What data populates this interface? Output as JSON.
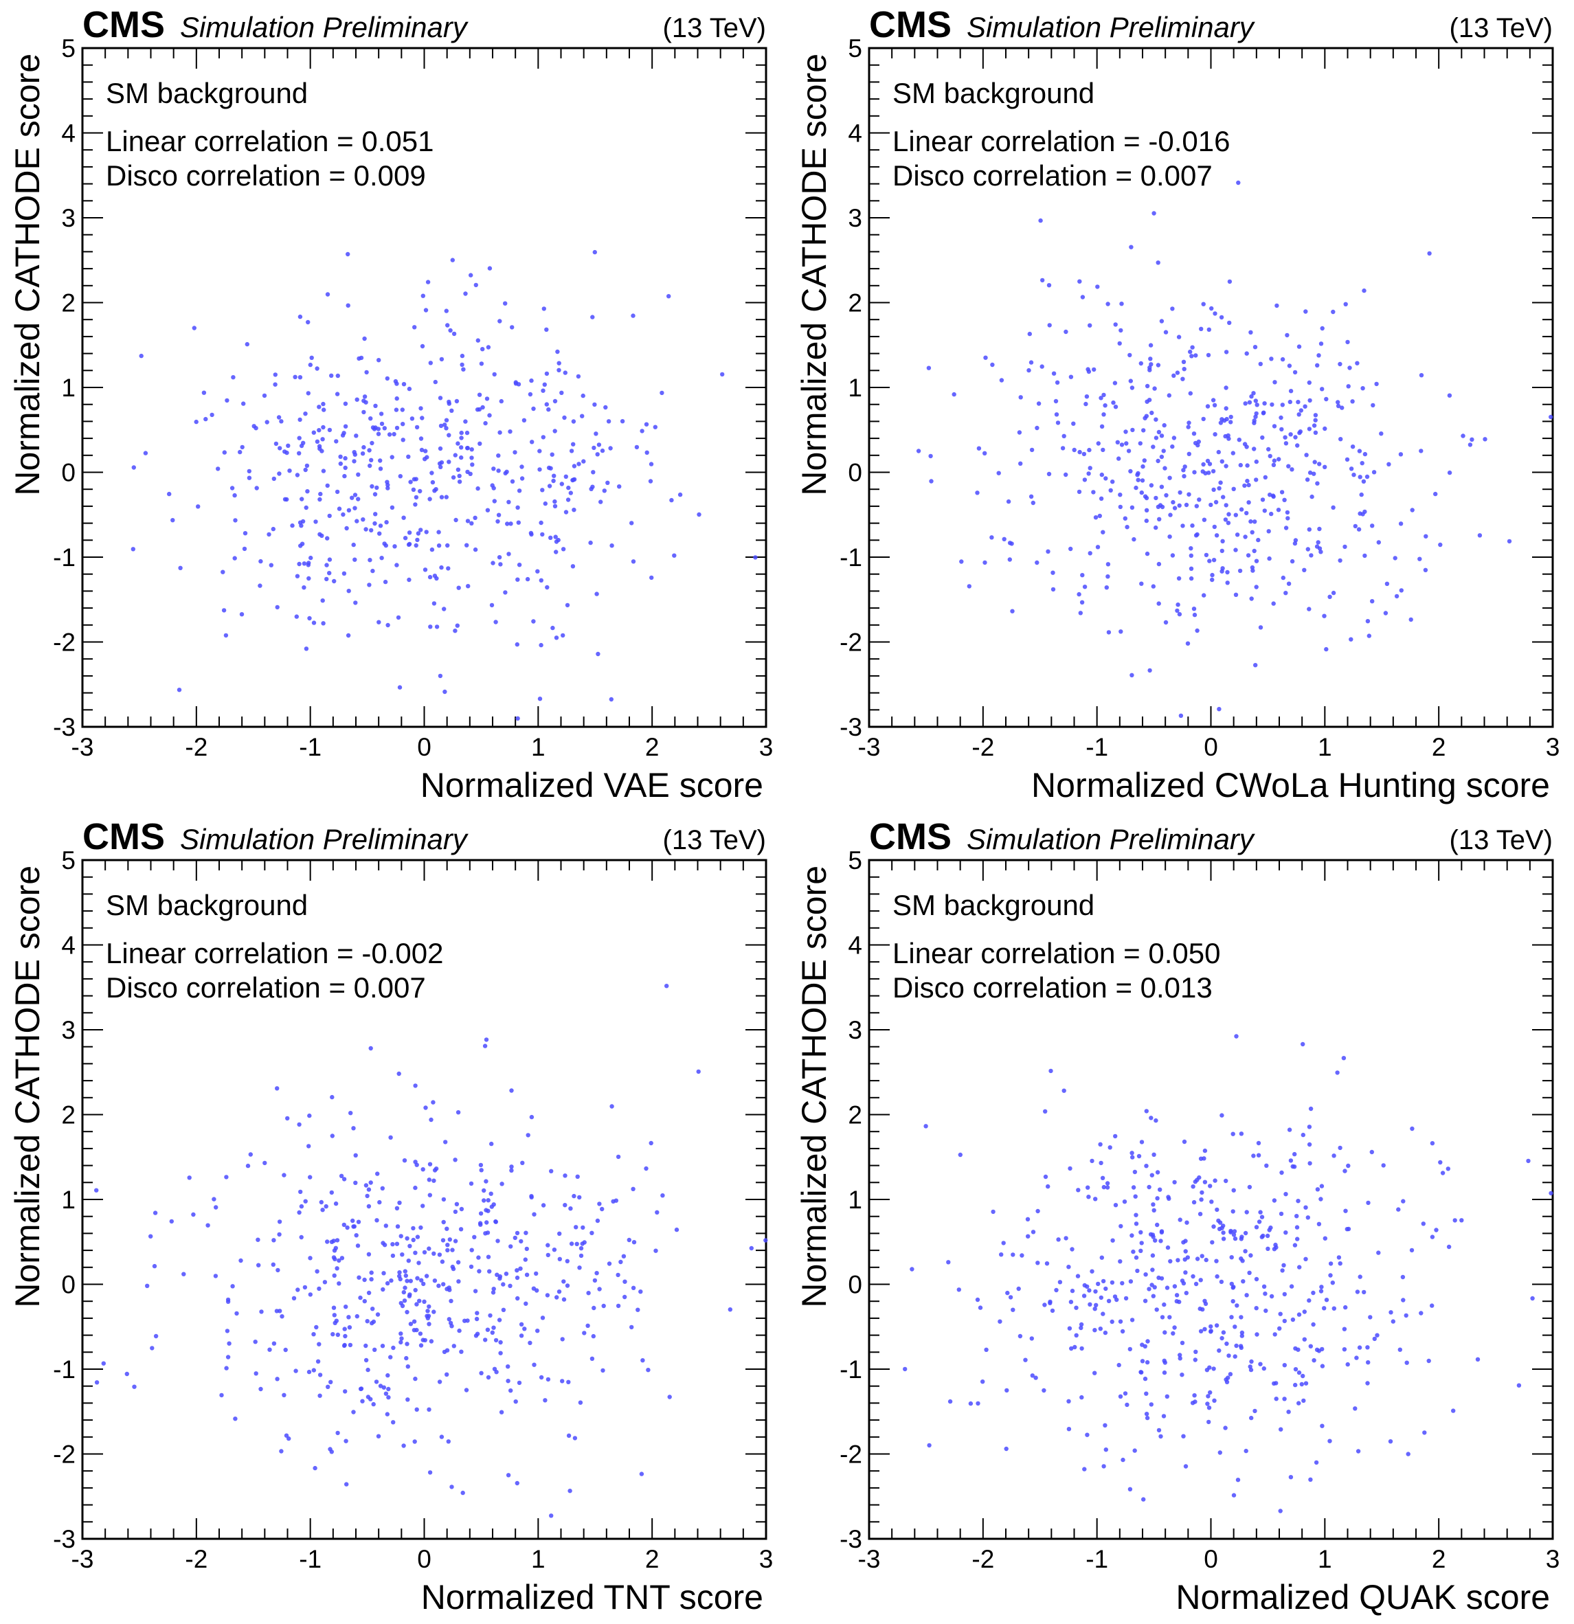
{
  "chart_data": [
    {
      "type": "scatter",
      "experiment": "CMS",
      "status": "Simulation Preliminary",
      "energy": "(13 TeV)",
      "xlabel": "Normalized VAE score",
      "ylabel": "Normalized CATHODE score",
      "xlim": [
        -3,
        3
      ],
      "ylim": [
        -3,
        5
      ],
      "xticks": [
        "-3",
        "-2",
        "-1",
        "0",
        "1",
        "2",
        "3"
      ],
      "yticks": [
        "-3",
        "-2",
        "-1",
        "0",
        "1",
        "2",
        "3",
        "4",
        "5"
      ],
      "sample_label": "SM background",
      "linear_label": "Linear correlation = 0.051",
      "disco_label": "Disco correlation = 0.009",
      "linear_correlation": 0.051,
      "disco_correlation": 0.009,
      "marker_color": "#4b4bff",
      "n_points": 520,
      "points": []
    },
    {
      "type": "scatter",
      "experiment": "CMS",
      "status": "Simulation Preliminary",
      "energy": "(13 TeV)",
      "xlabel": "Normalized CWoLa Hunting score",
      "ylabel": "Normalized CATHODE score",
      "xlim": [
        -3,
        3
      ],
      "ylim": [
        -3,
        5
      ],
      "xticks": [
        "-3",
        "-2",
        "-1",
        "0",
        "1",
        "2",
        "3"
      ],
      "yticks": [
        "-3",
        "-2",
        "-1",
        "0",
        "1",
        "2",
        "3",
        "4",
        "5"
      ],
      "sample_label": "SM background",
      "linear_label": "Linear correlation = -0.016",
      "disco_label": "Disco correlation = 0.007",
      "linear_correlation": -0.016,
      "disco_correlation": 0.007,
      "marker_color": "#4b4bff",
      "n_points": 520,
      "points": []
    },
    {
      "type": "scatter",
      "experiment": "CMS",
      "status": "Simulation Preliminary",
      "energy": "(13 TeV)",
      "xlabel": "Normalized TNT score",
      "ylabel": "Normalized CATHODE score",
      "xlim": [
        -3,
        3
      ],
      "ylim": [
        -3,
        5
      ],
      "xticks": [
        "-3",
        "-2",
        "-1",
        "0",
        "1",
        "2",
        "3"
      ],
      "yticks": [
        "-3",
        "-2",
        "-1",
        "0",
        "1",
        "2",
        "3",
        "4",
        "5"
      ],
      "sample_label": "SM background",
      "linear_label": "Linear correlation = -0.002",
      "disco_label": "Disco correlation = 0.007",
      "linear_correlation": -0.002,
      "disco_correlation": 0.007,
      "marker_color": "#4b4bff",
      "n_points": 520,
      "points": []
    },
    {
      "type": "scatter",
      "experiment": "CMS",
      "status": "Simulation Preliminary",
      "energy": "(13 TeV)",
      "xlabel": "Normalized QUAK score",
      "ylabel": "Normalized CATHODE score",
      "xlim": [
        -3,
        3
      ],
      "ylim": [
        -3,
        5
      ],
      "xticks": [
        "-3",
        "-2",
        "-1",
        "0",
        "1",
        "2",
        "3"
      ],
      "yticks": [
        "-3",
        "-2",
        "-1",
        "0",
        "1",
        "2",
        "3",
        "4",
        "5"
      ],
      "sample_label": "SM background",
      "linear_label": "Linear correlation = 0.050",
      "disco_label": "Disco correlation = 0.013",
      "linear_correlation": 0.05,
      "disco_correlation": 0.013,
      "marker_color": "#4b4bff",
      "n_points": 520,
      "points": []
    }
  ]
}
